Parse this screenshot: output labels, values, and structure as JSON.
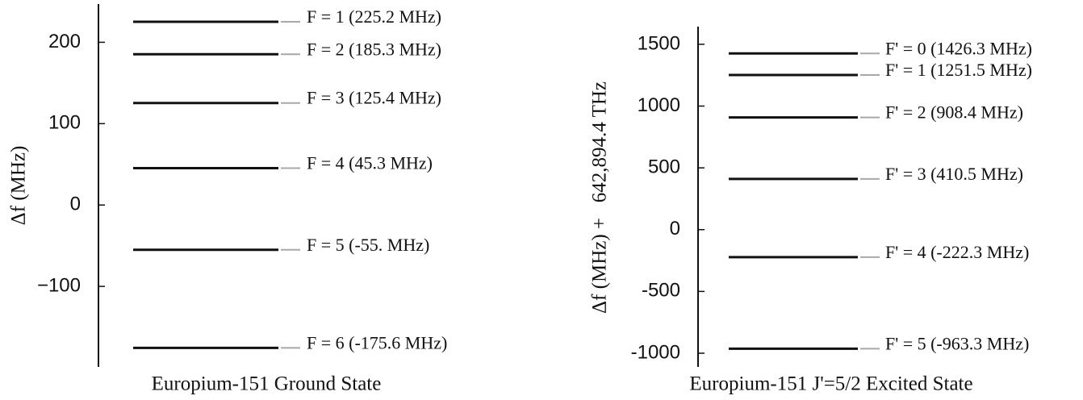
{
  "chart_data": [
    {
      "type": "levels",
      "ylabel": "Δf (MHz)",
      "xlabel": "Europium-151 Ground State",
      "values": [
        225.2,
        185.3,
        125.4,
        45.3,
        -55,
        -175.6
      ],
      "value_labels": [
        "F = 1 (225.2 MHz)",
        "F = 2 (185.3 MHz)",
        "F = 3 (125.4 MHz)",
        "F = 4 (45.3 MHz)",
        "F = 5 (-55. MHz)",
        "F = 6 (-175.6 MHz)"
      ],
      "ylim": [
        -199,
        247
      ],
      "yticks": [
        200,
        100,
        0,
        {
          "value": -100,
          "label": "−100"
        }
      ],
      "color": "#111111",
      "connector_color": "#a8a8a8"
    },
    {
      "type": "levels",
      "ylabel": "Δf (MHz) +   642,894.4 THz",
      "xlabel": "Europium-151 J'=5/2 Excited State",
      "values": [
        1426.3,
        1251.5,
        908.4,
        410.5,
        -222.3,
        -963.3
      ],
      "value_labels": [
        "F' = 0 (1426.3 MHz)",
        "F' = 1 (1251.5 MHz)",
        "F' = 2 (908.4 MHz)",
        "F' = 3 (410.5 MHz)",
        "F' = 4 (-222.3 MHz)",
        "F' = 5 (-963.3 MHz)"
      ],
      "ylim": [
        -1111,
        1643
      ],
      "yticks": [
        1500,
        1000,
        500,
        0,
        -500,
        -1000
      ],
      "color": "#111111",
      "connector_color": "#a8a8a8"
    }
  ]
}
